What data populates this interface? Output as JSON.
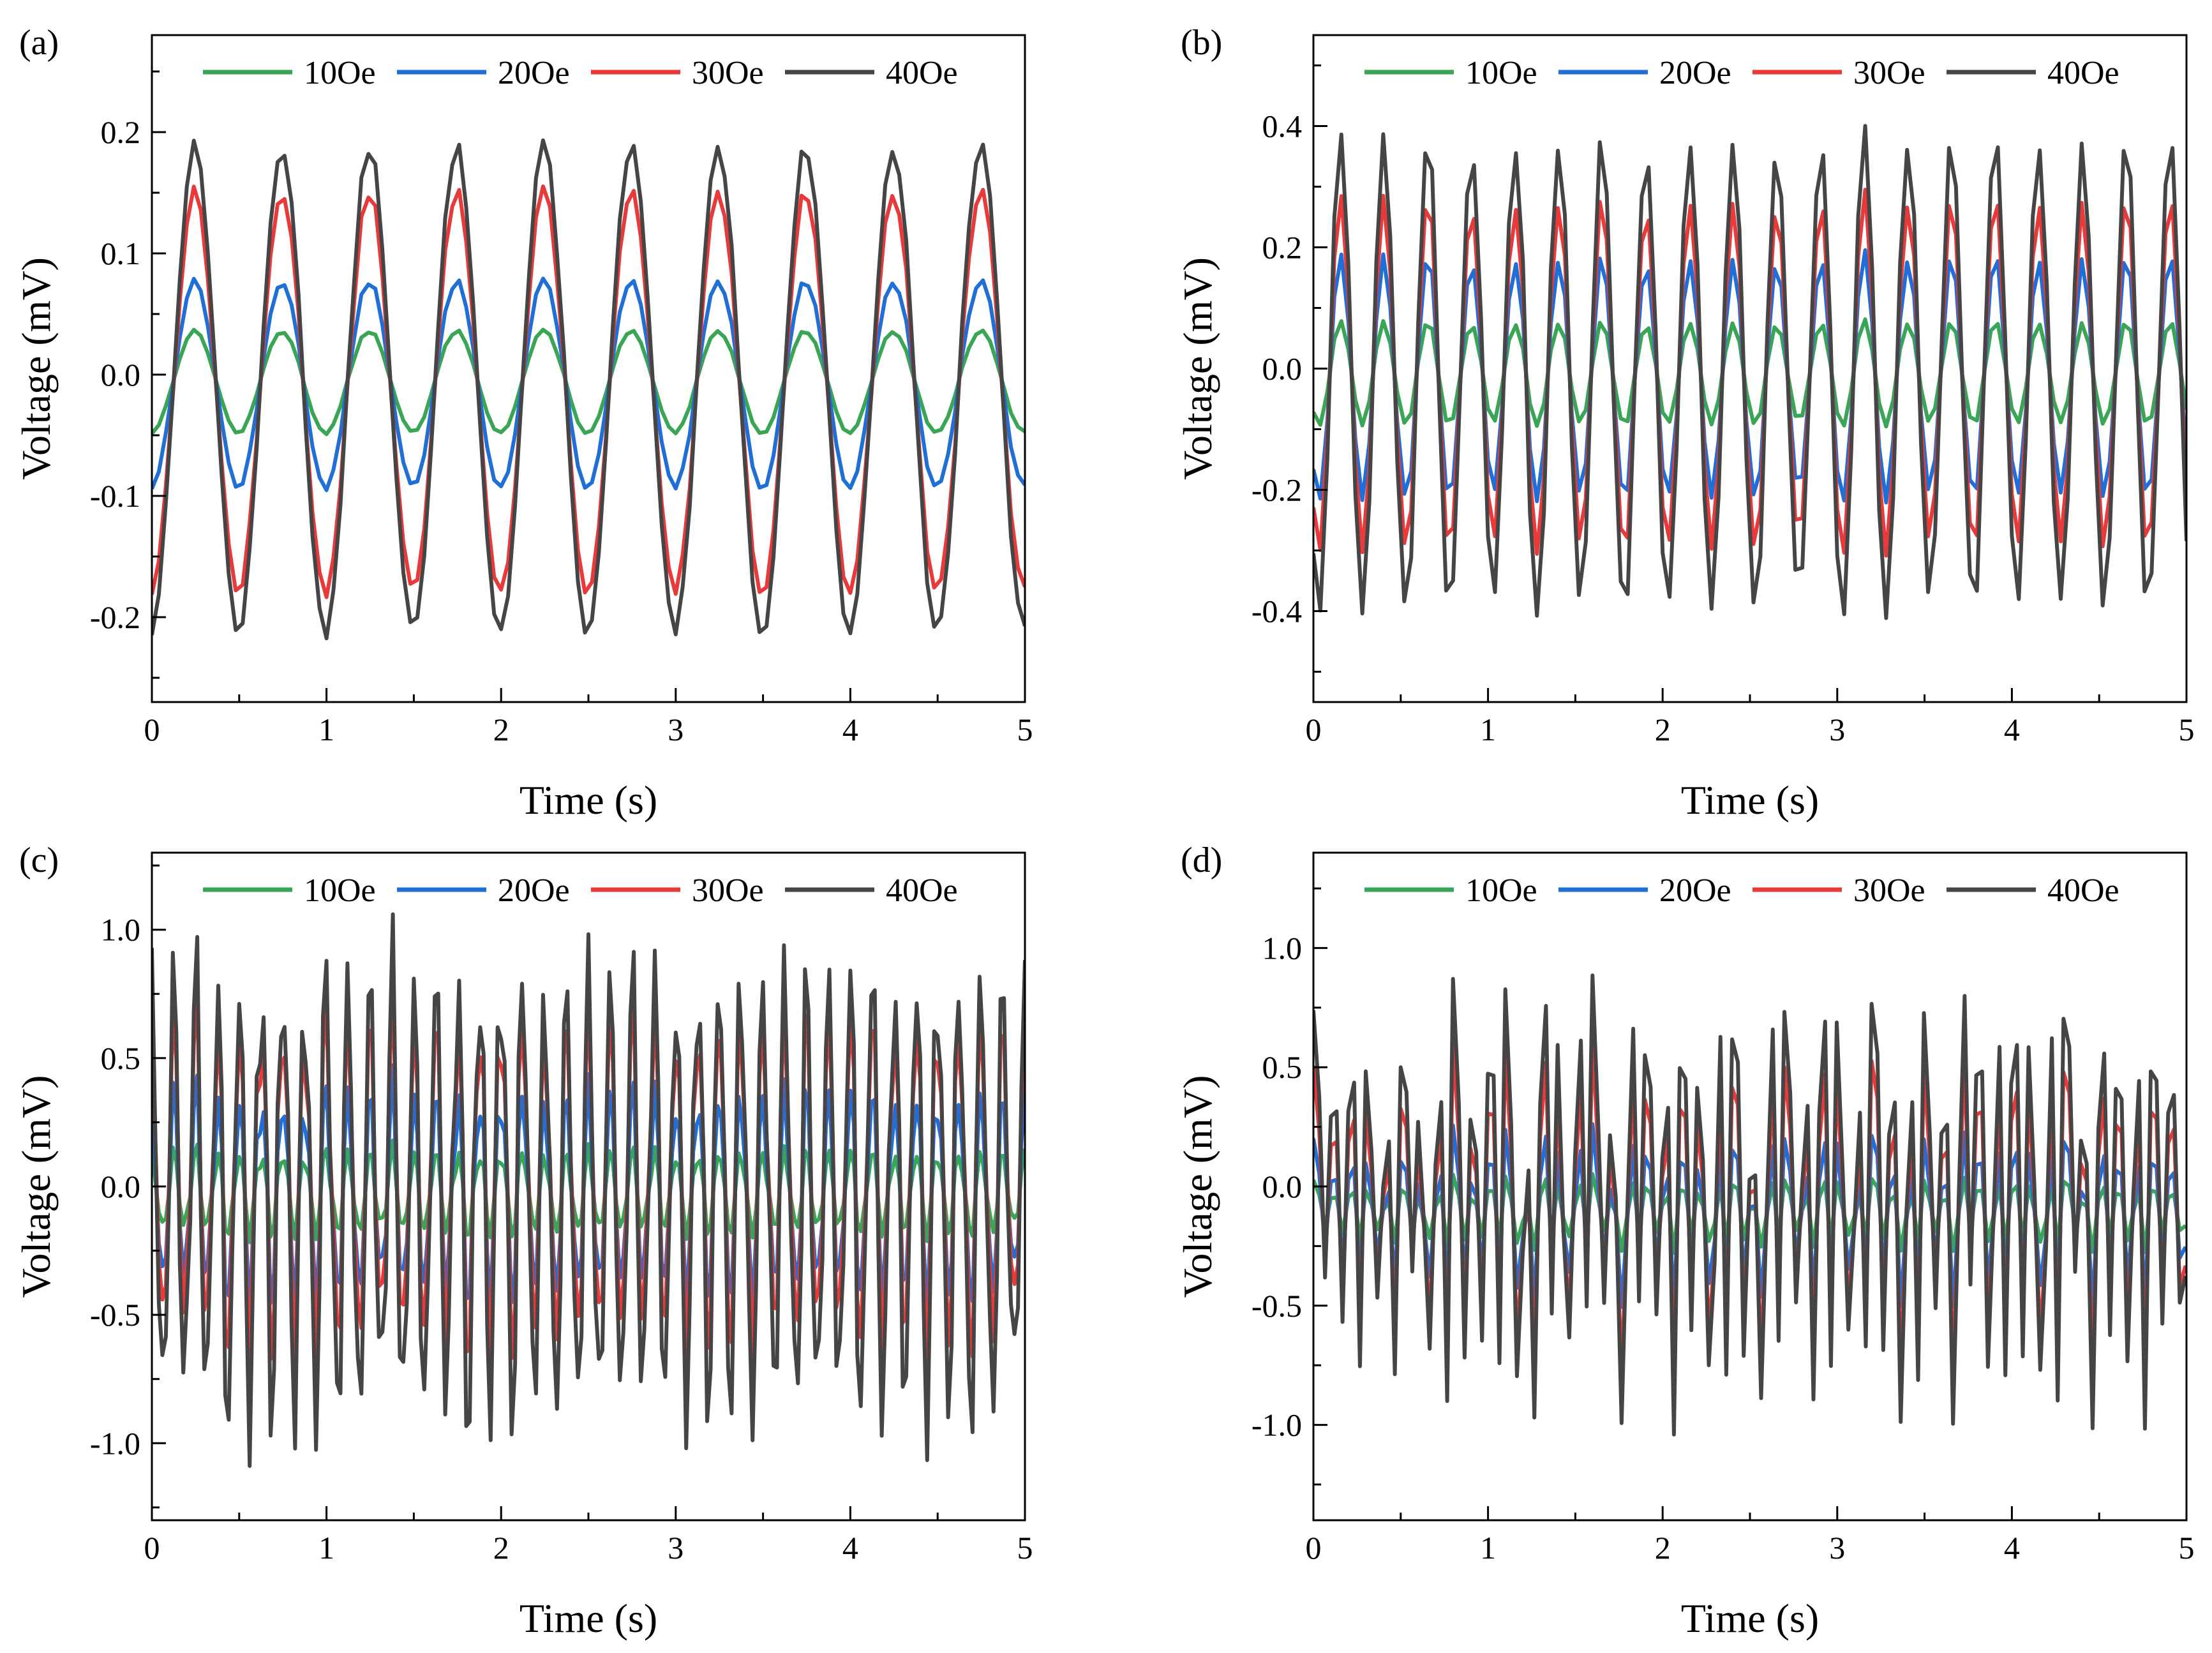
{
  "figure": {
    "series_styles": [
      {
        "name": "10Oe",
        "color": "#3aa655"
      },
      {
        "name": "20Oe",
        "color": "#1f6fd6"
      },
      {
        "name": "30Oe",
        "color": "#e83a3a"
      },
      {
        "name": "40Oe",
        "color": "#454545"
      }
    ]
  },
  "chart_data": [
    {
      "type": "line",
      "panel_label": "(a)",
      "title": "",
      "xlabel": "Time (s)",
      "ylabel": "Voltage (mV)",
      "xlim": [
        0,
        5
      ],
      "ylim": [
        -0.27,
        0.28
      ],
      "xticks": [
        0,
        1,
        2,
        3,
        4,
        5
      ],
      "xtick_labels": [
        "0",
        "1",
        "2",
        "3",
        "4",
        "5"
      ],
      "yticks": [
        -0.2,
        -0.1,
        0.0,
        0.1,
        0.2
      ],
      "ytick_labels": [
        "-0.2",
        "-0.1",
        "0.0",
        "0.1",
        "0.2"
      ],
      "legend": [
        "10Oe",
        "20Oe",
        "30Oe",
        "40Oe"
      ],
      "legend_position": "top",
      "signal": {
        "frequency_hz": 2.0,
        "phase_cycles": -0.24,
        "sample_interval_s": 0.04,
        "harmonics": [],
        "jitter": 0.03
      },
      "series": [
        {
          "name": "10Oe",
          "amplitude_mV": 0.042,
          "offset_mV": -0.006
        },
        {
          "name": "20Oe",
          "amplitude_mV": 0.085,
          "offset_mV": -0.008
        },
        {
          "name": "30Oe",
          "amplitude_mV": 0.165,
          "offset_mV": -0.014
        },
        {
          "name": "40Oe",
          "amplitude_mV": 0.2,
          "offset_mV": -0.012
        }
      ]
    },
    {
      "type": "line",
      "panel_label": "(b)",
      "title": "",
      "xlabel": "Time (s)",
      "ylabel": "Voltage (mV)",
      "xlim": [
        0,
        5
      ],
      "ylim": [
        -0.55,
        0.55
      ],
      "xticks": [
        0,
        1,
        2,
        3,
        4,
        5
      ],
      "xtick_labels": [
        "0",
        "1",
        "2",
        "3",
        "4",
        "5"
      ],
      "yticks": [
        -0.4,
        -0.2,
        0.0,
        0.2,
        0.4
      ],
      "ytick_labels": [
        "-0.4",
        "-0.2",
        "0.0",
        "0.2",
        "0.4"
      ],
      "legend": [
        "10Oe",
        "20Oe",
        "30Oe",
        "40Oe"
      ],
      "legend_position": "top",
      "signal": {
        "frequency_hz": 4.0,
        "phase_cycles": -0.37,
        "sample_interval_s": 0.04,
        "harmonics": [],
        "jitter": 0.06
      },
      "series": [
        {
          "name": "10Oe",
          "amplitude_mV": 0.085,
          "offset_mV": -0.008
        },
        {
          "name": "20Oe",
          "amplitude_mV": 0.2,
          "offset_mV": -0.015
        },
        {
          "name": "30Oe",
          "amplitude_mV": 0.29,
          "offset_mV": -0.01
        },
        {
          "name": "40Oe",
          "amplitude_mV": 0.39,
          "offset_mV": -0.01
        }
      ]
    },
    {
      "type": "line",
      "panel_label": "(c)",
      "title": "",
      "xlabel": "Time (s)",
      "ylabel": "Voltage (mV)",
      "xlim": [
        0,
        5
      ],
      "ylim": [
        -1.3,
        1.3
      ],
      "xticks": [
        0,
        1,
        2,
        3,
        4,
        5
      ],
      "xtick_labels": [
        "0",
        "1",
        "2",
        "3",
        "4",
        "5"
      ],
      "yticks": [
        -1.0,
        -0.5,
        0.0,
        0.5,
        1.0
      ],
      "ytick_labels": [
        "-1.0",
        "-0.5",
        "0.0",
        "0.5",
        "1.0"
      ],
      "legend": [
        "10Oe",
        "20Oe",
        "30Oe",
        "40Oe"
      ],
      "legend_position": "top",
      "signal": {
        "frequency_hz": 8.0,
        "phase_cycles": 0.25,
        "sample_interval_s": 0.02,
        "harmonics": [
          {
            "ratio": 1.9,
            "weight": 0.25
          }
        ],
        "jitter": 0.12
      },
      "series": [
        {
          "name": "10Oe",
          "amplitude_mV": 0.17,
          "offset_mV": -0.02
        },
        {
          "name": "20Oe",
          "amplitude_mV": 0.42,
          "offset_mV": -0.02
        },
        {
          "name": "30Oe",
          "amplitude_mV": 0.68,
          "offset_mV": 0.03
        },
        {
          "name": "40Oe",
          "amplitude_mV": 0.92,
          "offset_mV": -0.02
        }
      ]
    },
    {
      "type": "line",
      "panel_label": "(d)",
      "title": "",
      "xlabel": "Time (s)",
      "ylabel": "Voltage (mV)",
      "xlim": [
        0,
        5
      ],
      "ylim": [
        -1.4,
        1.4
      ],
      "xticks": [
        0,
        1,
        2,
        3,
        4,
        5
      ],
      "xtick_labels": [
        "0",
        "1",
        "2",
        "3",
        "4",
        "5"
      ],
      "yticks": [
        -1.0,
        -0.5,
        0.0,
        0.5,
        1.0
      ],
      "ytick_labels": [
        "-1.0",
        "-0.5",
        "0.0",
        "0.5",
        "1.0"
      ],
      "legend": [
        "10Oe",
        "20Oe",
        "30Oe",
        "40Oe"
      ],
      "legend_position": "top",
      "signal": {
        "frequency_hz": 10.0,
        "phase_cycles": 0.1,
        "sample_interval_s": 0.0333,
        "harmonics": [
          {
            "ratio": 0.37,
            "weight": 0.35
          },
          {
            "ratio": 1.63,
            "weight": 0.3
          }
        ],
        "jitter": 0.25
      },
      "series": [
        {
          "name": "10Oe",
          "amplitude_mV": 0.16,
          "offset_mV": -0.1
        },
        {
          "name": "20Oe",
          "amplitude_mV": 0.38,
          "offset_mV": -0.1
        },
        {
          "name": "30Oe",
          "amplitude_mV": 0.7,
          "offset_mV": -0.05
        },
        {
          "name": "40Oe",
          "amplitude_mV": 0.93,
          "offset_mV": 0.0
        }
      ]
    }
  ]
}
